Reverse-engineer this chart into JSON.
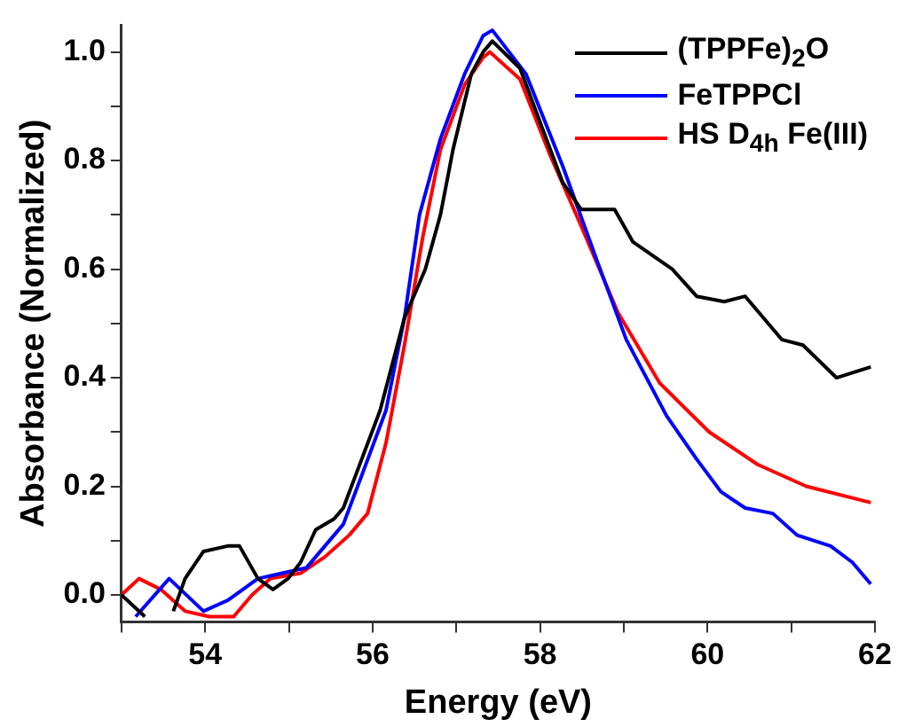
{
  "chart_data": {
    "type": "line",
    "xlabel": "Energy (eV)",
    "ylabel": "Absorbance (Normalized)",
    "xlim": [
      53,
      62
    ],
    "ylim": [
      -0.05,
      1.05
    ],
    "xticks": [
      {
        "value": 53,
        "label": null
      },
      54,
      {
        "value": 55,
        "label": null
      },
      56,
      {
        "value": 57,
        "label": null
      },
      58,
      {
        "value": 59,
        "label": null
      },
      60,
      {
        "value": 61,
        "label": null
      },
      62
    ],
    "yticks": [
      "0.0",
      {
        "value": 0.1,
        "label": null
      },
      0.2,
      {
        "value": 0.3,
        "label": null
      },
      0.4,
      {
        "value": 0.5,
        "label": null
      },
      0.6,
      {
        "value": 0.7,
        "label": null
      },
      0.8,
      {
        "value": 0.9,
        "label": null
      },
      "1.0"
    ],
    "grid": false,
    "legend": "top right",
    "marker": "none",
    "line_style": "solid",
    "series": [
      {
        "name": "(TPPFe)$_{2}$O",
        "color": "#000000",
        "x": [
          53.0,
          53.28,
          53.45,
          53.62,
          53.76,
          53.98,
          54.27,
          54.41,
          54.63,
          54.81,
          54.99,
          55.14,
          55.32,
          55.54,
          55.65,
          55.87,
          56.09,
          56.38,
          56.63,
          56.81,
          56.96,
          57.18,
          57.32,
          57.43,
          57.76,
          58.05,
          58.27,
          58.49,
          58.89,
          59.11,
          59.58,
          59.87,
          60.2,
          60.45,
          60.89,
          61.14,
          61.54,
          61.95
        ],
        "values": [
          0.0,
          -0.04,
          null,
          -0.03,
          0.03,
          0.08,
          0.09,
          0.09,
          0.03,
          0.01,
          0.03,
          0.06,
          0.12,
          0.14,
          0.16,
          0.25,
          0.34,
          0.51,
          0.6,
          0.7,
          0.82,
          0.96,
          1.0,
          1.02,
          0.97,
          0.85,
          0.76,
          0.71,
          0.71,
          0.65,
          0.6,
          0.55,
          0.54,
          0.55,
          0.47,
          0.46,
          0.4,
          0.42
        ]
      },
      {
        "name": "FeTPPCl",
        "color": "#0000ff",
        "x": [
          53.17,
          53.57,
          53.98,
          54.27,
          54.63,
          54.92,
          55.21,
          55.43,
          55.65,
          55.87,
          56.16,
          56.38,
          56.56,
          56.81,
          57.1,
          57.32,
          57.43,
          57.83,
          58.27,
          58.67,
          59.03,
          59.51,
          59.87,
          60.16,
          60.45,
          60.78,
          61.07,
          61.47,
          61.73,
          61.95
        ],
        "values": [
          -0.04,
          0.03,
          -0.03,
          -0.01,
          0.03,
          0.04,
          0.05,
          0.09,
          0.13,
          0.22,
          0.34,
          0.51,
          0.7,
          0.84,
          0.96,
          1.03,
          1.04,
          0.96,
          0.79,
          0.62,
          0.47,
          0.33,
          0.25,
          0.19,
          0.16,
          0.15,
          0.11,
          0.09,
          0.06,
          0.02
        ]
      },
      {
        "name": "HS D$_{4h}$ Fe(III)",
        "color": "#ff0000",
        "x": [
          53.0,
          53.21,
          53.47,
          53.76,
          54.05,
          54.34,
          54.56,
          54.78,
          55.14,
          55.43,
          55.72,
          55.94,
          56.16,
          56.38,
          56.6,
          56.81,
          57.1,
          57.32,
          57.4,
          57.76,
          58.12,
          58.49,
          58.93,
          59.43,
          60.02,
          60.6,
          61.18,
          61.95
        ],
        "values": [
          0.0,
          0.03,
          0.01,
          -0.03,
          -0.04,
          -0.04,
          0.0,
          0.03,
          0.04,
          0.07,
          0.11,
          0.15,
          0.28,
          0.46,
          0.66,
          0.82,
          0.94,
          0.99,
          1.0,
          0.95,
          0.81,
          0.68,
          0.52,
          0.39,
          0.3,
          0.24,
          0.2,
          0.17
        ]
      }
    ]
  }
}
